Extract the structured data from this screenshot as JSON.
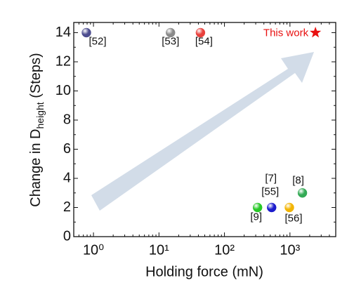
{
  "chart_data": {
    "type": "scatter",
    "xlabel": "Holding force (mN)",
    "ylabel": {
      "main": "Change in D",
      "sub": "height",
      "tail": " (Steps)"
    },
    "xscale": "log",
    "xlim": [
      0.5,
      5000
    ],
    "xticks": [
      {
        "value": 1,
        "label": "10⁰"
      },
      {
        "value": 10,
        "label": "10¹"
      },
      {
        "value": 100,
        "label": "10²"
      },
      {
        "value": 1000,
        "label": "10³"
      }
    ],
    "ylim": [
      0,
      14.7
    ],
    "yticks": [
      0,
      2,
      4,
      6,
      8,
      10,
      12,
      14
    ],
    "points": [
      {
        "label": "[52]",
        "x": 0.78,
        "y": 14,
        "color": "#4d4d8f"
      },
      {
        "label": "[53]",
        "x": 15,
        "y": 14,
        "color": "#8a8a8a"
      },
      {
        "label": "[54]",
        "x": 43,
        "y": 14,
        "color": "#e8403c"
      },
      {
        "label": "[9]",
        "x": 320,
        "y": 2,
        "color": "#27c827"
      },
      {
        "label": "[55]",
        "x": 525,
        "y": 2,
        "color": "#1c1ccc"
      },
      {
        "label": "[56]",
        "x": 980,
        "y": 2,
        "color": "#f2b400"
      },
      {
        "label": "[8]",
        "x": 1550,
        "y": 3,
        "color": "#33aa55"
      }
    ],
    "annotations": [
      "[7]"
    ],
    "highlight": {
      "label": "This work",
      "x": 2450,
      "y": 14,
      "color": "#e81010"
    }
  }
}
